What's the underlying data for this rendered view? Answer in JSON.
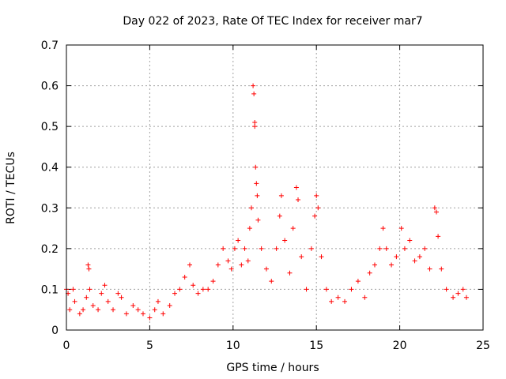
{
  "chart_data": {
    "type": "scatter",
    "title": "Day 022 of 2023, Rate Of TEC Index for receiver mar7",
    "xlabel": "GPS time / hours",
    "ylabel": "ROTI / TECUs",
    "xlim": [
      0,
      25
    ],
    "ylim": [
      0,
      0.7
    ],
    "xticks": [
      0,
      5,
      10,
      15,
      20,
      25
    ],
    "yticks": [
      0,
      0.1,
      0.2,
      0.3,
      0.4,
      0.5,
      0.6,
      0.7
    ],
    "xtick_labels": [
      "0",
      "5",
      "10",
      "15",
      "20",
      "25"
    ],
    "ytick_labels": [
      "0",
      "0.1",
      "0.2",
      "0.3",
      "0.4",
      "0.5",
      "0.6",
      "0.7"
    ],
    "grid": true,
    "marker": "+",
    "color": "#ff0000",
    "series": [
      {
        "values_note": "",
        "points": [
          [
            0.0,
            0.1
          ],
          [
            0.1,
            0.09
          ],
          [
            0.2,
            0.05
          ],
          [
            0.4,
            0.1
          ],
          [
            0.5,
            0.07
          ],
          [
            0.8,
            0.04
          ],
          [
            1.0,
            0.05
          ],
          [
            1.2,
            0.08
          ],
          [
            1.3,
            0.16
          ],
          [
            1.35,
            0.15
          ],
          [
            1.4,
            0.1
          ],
          [
            1.6,
            0.06
          ],
          [
            1.9,
            0.05
          ],
          [
            2.1,
            0.09
          ],
          [
            2.3,
            0.11
          ],
          [
            2.5,
            0.07
          ],
          [
            2.8,
            0.05
          ],
          [
            3.1,
            0.09
          ],
          [
            3.3,
            0.08
          ],
          [
            3.6,
            0.04
          ],
          [
            4.0,
            0.06
          ],
          [
            4.3,
            0.05
          ],
          [
            4.6,
            0.04
          ],
          [
            5.0,
            0.03
          ],
          [
            5.3,
            0.05
          ],
          [
            5.5,
            0.07
          ],
          [
            5.8,
            0.04
          ],
          [
            6.2,
            0.06
          ],
          [
            6.5,
            0.09
          ],
          [
            6.8,
            0.1
          ],
          [
            7.1,
            0.13
          ],
          [
            7.4,
            0.16
          ],
          [
            7.6,
            0.11
          ],
          [
            7.9,
            0.09
          ],
          [
            8.2,
            0.1
          ],
          [
            8.5,
            0.1
          ],
          [
            8.8,
            0.12
          ],
          [
            9.1,
            0.16
          ],
          [
            9.4,
            0.2
          ],
          [
            9.7,
            0.17
          ],
          [
            9.9,
            0.15
          ],
          [
            10.1,
            0.2
          ],
          [
            10.3,
            0.22
          ],
          [
            10.5,
            0.16
          ],
          [
            10.7,
            0.2
          ],
          [
            10.9,
            0.17
          ],
          [
            11.0,
            0.25
          ],
          [
            11.1,
            0.3
          ],
          [
            11.2,
            0.6
          ],
          [
            11.25,
            0.58
          ],
          [
            11.3,
            0.51
          ],
          [
            11.3,
            0.5
          ],
          [
            11.35,
            0.4
          ],
          [
            11.4,
            0.36
          ],
          [
            11.45,
            0.33
          ],
          [
            11.5,
            0.27
          ],
          [
            11.7,
            0.2
          ],
          [
            12.0,
            0.15
          ],
          [
            12.3,
            0.12
          ],
          [
            12.6,
            0.2
          ],
          [
            12.8,
            0.28
          ],
          [
            12.9,
            0.33
          ],
          [
            13.1,
            0.22
          ],
          [
            13.4,
            0.14
          ],
          [
            13.6,
            0.25
          ],
          [
            13.8,
            0.35
          ],
          [
            13.9,
            0.32
          ],
          [
            14.1,
            0.18
          ],
          [
            14.4,
            0.1
          ],
          [
            14.7,
            0.2
          ],
          [
            14.9,
            0.28
          ],
          [
            15.0,
            0.33
          ],
          [
            15.1,
            0.3
          ],
          [
            15.3,
            0.18
          ],
          [
            15.6,
            0.1
          ],
          [
            15.9,
            0.07
          ],
          [
            16.3,
            0.08
          ],
          [
            16.7,
            0.07
          ],
          [
            17.1,
            0.1
          ],
          [
            17.5,
            0.12
          ],
          [
            17.9,
            0.08
          ],
          [
            18.2,
            0.14
          ],
          [
            18.5,
            0.16
          ],
          [
            18.8,
            0.2
          ],
          [
            19.0,
            0.25
          ],
          [
            19.2,
            0.2
          ],
          [
            19.5,
            0.16
          ],
          [
            19.8,
            0.18
          ],
          [
            20.1,
            0.25
          ],
          [
            20.3,
            0.2
          ],
          [
            20.6,
            0.22
          ],
          [
            20.9,
            0.17
          ],
          [
            21.2,
            0.18
          ],
          [
            21.5,
            0.2
          ],
          [
            21.8,
            0.15
          ],
          [
            22.1,
            0.3
          ],
          [
            22.2,
            0.29
          ],
          [
            22.3,
            0.23
          ],
          [
            22.5,
            0.15
          ],
          [
            22.8,
            0.1
          ],
          [
            23.2,
            0.08
          ],
          [
            23.5,
            0.09
          ],
          [
            23.8,
            0.1
          ],
          [
            24.0,
            0.08
          ]
        ]
      }
    ]
  }
}
